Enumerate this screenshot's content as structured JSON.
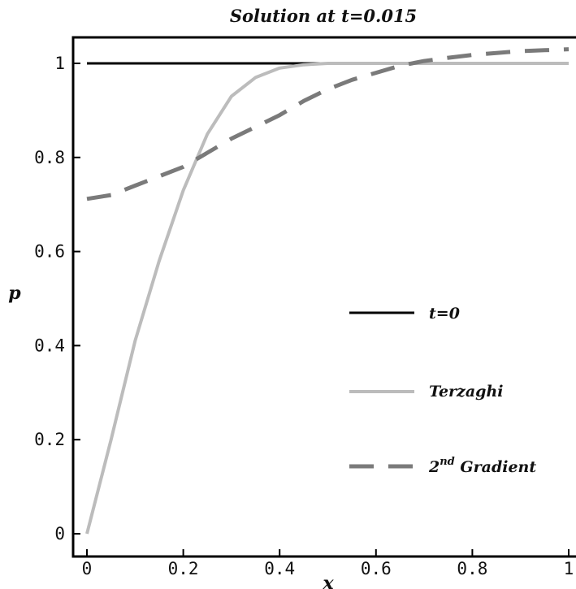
{
  "chart_data": {
    "type": "line",
    "title": "Solution at t=0.015",
    "xlabel": "x",
    "ylabel": "p",
    "xlim": [
      0,
      1
    ],
    "ylim": [
      0,
      1
    ],
    "x_ticks": [
      "0",
      "0.2",
      "0.4",
      "0.6",
      "0.8",
      "1"
    ],
    "y_ticks": [
      "0",
      "0.2",
      "0.4",
      "0.6",
      "0.8",
      "1"
    ],
    "grid": false,
    "legend_position": "right",
    "series": [
      {
        "name": "t=0",
        "color": "#000000",
        "style": "solid",
        "points": [
          [
            0,
            1
          ],
          [
            1,
            1
          ]
        ]
      },
      {
        "name": "Terzaghi",
        "color": "#bcbcbc",
        "style": "solid",
        "points": [
          [
            0,
            0
          ],
          [
            0.05,
            0.2
          ],
          [
            0.1,
            0.41
          ],
          [
            0.15,
            0.58
          ],
          [
            0.2,
            0.73
          ],
          [
            0.25,
            0.85
          ],
          [
            0.3,
            0.93
          ],
          [
            0.35,
            0.97
          ],
          [
            0.4,
            0.99
          ],
          [
            0.45,
            0.997
          ],
          [
            0.5,
            1.0
          ],
          [
            0.6,
            1.0
          ],
          [
            0.8,
            1.0
          ],
          [
            1,
            1.0
          ]
        ]
      },
      {
        "name": "2nd Gradient",
        "color": "#7a7a7a",
        "style": "dashed",
        "points": [
          [
            0,
            0.712
          ],
          [
            0.05,
            0.72
          ],
          [
            0.1,
            0.74
          ],
          [
            0.15,
            0.76
          ],
          [
            0.2,
            0.78
          ],
          [
            0.25,
            0.81
          ],
          [
            0.3,
            0.84
          ],
          [
            0.35,
            0.865
          ],
          [
            0.4,
            0.89
          ],
          [
            0.45,
            0.92
          ],
          [
            0.5,
            0.945
          ],
          [
            0.55,
            0.965
          ],
          [
            0.6,
            0.98
          ],
          [
            0.65,
            0.995
          ],
          [
            0.7,
            1.005
          ],
          [
            0.75,
            1.012
          ],
          [
            0.8,
            1.018
          ],
          [
            0.85,
            1.022
          ],
          [
            0.9,
            1.026
          ],
          [
            0.95,
            1.028
          ],
          [
            1,
            1.03
          ]
        ]
      }
    ],
    "legend": {
      "t0_label": "t=0",
      "terzaghi_label": "Terzaghi",
      "gradient_label_sup": "nd",
      "gradient_label_base": "2",
      "gradient_label_rest": " Gradient"
    }
  }
}
